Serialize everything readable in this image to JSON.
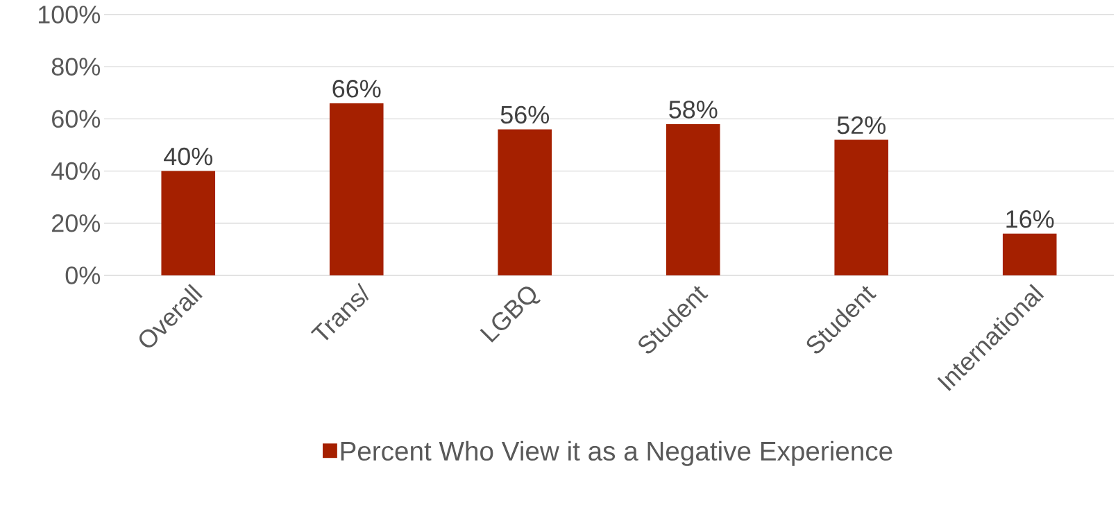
{
  "chart_data": {
    "type": "bar",
    "categories": [
      "Overall",
      "Trans/",
      "LGBQ",
      "Student",
      "Student",
      "International"
    ],
    "series": [
      {
        "name": "Percent Who View it as a Negative Experience",
        "color": "#a52000",
        "values": [
          40,
          66,
          56,
          58,
          52,
          16
        ],
        "value_labels": [
          "40%",
          "66%",
          "56%",
          "58%",
          "52%",
          "16%"
        ]
      }
    ],
    "ylim": [
      0,
      100
    ],
    "yticks": [
      {
        "value": 0,
        "label": "0%"
      },
      {
        "value": 20,
        "label": "20%"
      },
      {
        "value": 40,
        "label": "40%"
      },
      {
        "value": 60,
        "label": "60%"
      },
      {
        "value": 80,
        "label": "80%"
      },
      {
        "value": 100,
        "label": "100%"
      }
    ],
    "grid": "y",
    "legend": "bottom"
  }
}
